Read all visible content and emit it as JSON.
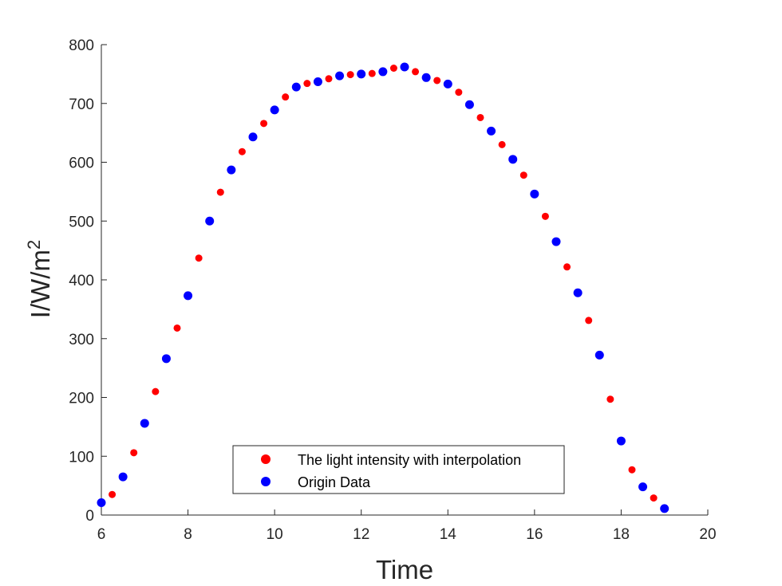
{
  "chart_data": {
    "type": "scatter",
    "xlabel": "Time",
    "ylabel_main": "I/W/m",
    "ylabel_superscript": "2",
    "xlim": [
      6,
      20
    ],
    "ylim": [
      0,
      800
    ],
    "xticks": [
      "6",
      "8",
      "10",
      "12",
      "14",
      "16",
      "18",
      "20"
    ],
    "yticks": [
      "0",
      "100",
      "200",
      "300",
      "400",
      "500",
      "600",
      "700",
      "800"
    ],
    "grid": false,
    "legend_position": "bottom-center",
    "series": [
      {
        "name": "The light intensity with interpolation",
        "color": "#ff0000",
        "marker_size": "small",
        "x": [
          6.25,
          6.75,
          7.25,
          7.75,
          8.25,
          8.75,
          9.25,
          9.75,
          10.25,
          10.75,
          11.25,
          11.75,
          12.25,
          12.75,
          13.25,
          13.75,
          14.25,
          14.75,
          15.25,
          15.75,
          16.25,
          16.75,
          17.25,
          17.75,
          18.25,
          18.75
        ],
        "y": [
          35,
          106,
          210,
          318,
          437,
          549,
          618,
          666,
          711,
          734,
          742,
          749,
          751,
          760,
          754,
          739,
          719,
          676,
          630,
          578,
          508,
          422,
          331,
          197,
          77,
          29
        ]
      },
      {
        "name": "Origin Data",
        "color": "#0000ff",
        "marker_size": "large",
        "x": [
          6,
          6.5,
          7,
          7.5,
          8,
          8.5,
          9,
          9.5,
          10,
          10.5,
          11,
          11.5,
          12,
          12.5,
          13,
          13.5,
          14,
          14.5,
          15,
          15.5,
          16,
          16.5,
          17,
          17.5,
          18,
          18.5,
          19
        ],
        "y": [
          21,
          65,
          156,
          266,
          373,
          500,
          587,
          643,
          689,
          728,
          737,
          747,
          750,
          754,
          762,
          744,
          733,
          698,
          653,
          605,
          546,
          465,
          378,
          272,
          126,
          48,
          11
        ]
      }
    ]
  }
}
